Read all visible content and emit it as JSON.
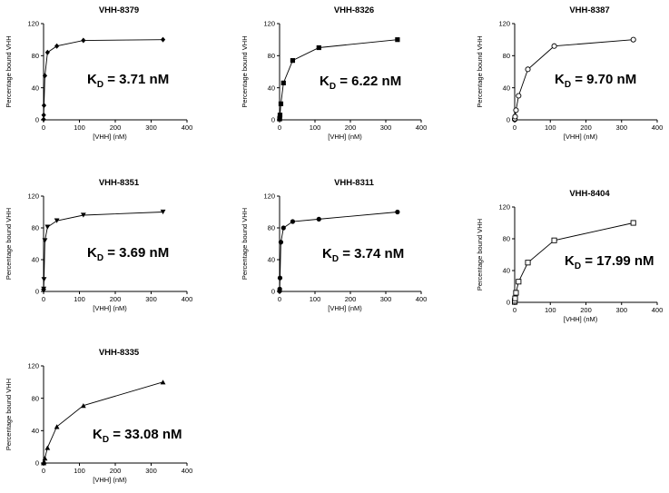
{
  "chart_data": [
    {
      "type": "scatter",
      "title": "VHH-8379",
      "xlabel": "[VHH] (nM)",
      "ylabel": "Percentage bound VHH",
      "xlim": [
        0,
        400
      ],
      "ylim": [
        0,
        120
      ],
      "xticks": [
        "0",
        "100",
        "200",
        "300",
        "400"
      ],
      "yticks": [
        "0",
        "40",
        "80",
        "120"
      ],
      "marker": "diamond",
      "x": [
        0.1,
        0.4,
        1.2,
        3.7,
        11,
        37,
        111,
        333
      ],
      "y": [
        0.5,
        6,
        18,
        55,
        84,
        92,
        99,
        100
      ],
      "kd_label": {
        "prefix": "K",
        "sub": "D",
        "value": " = 3.71 nM"
      }
    },
    {
      "type": "scatter",
      "title": "VHH-8326",
      "xlabel": "[VHH] (nM)",
      "ylabel": "Percentage bound VHH",
      "xlim": [
        0,
        400
      ],
      "ylim": [
        0,
        120
      ],
      "xticks": [
        "0",
        "100",
        "200",
        "300",
        "400"
      ],
      "yticks": [
        "0",
        "40",
        "80",
        "120"
      ],
      "marker": "square",
      "x": [
        0.1,
        0.4,
        1.2,
        3.7,
        11,
        37,
        111,
        333
      ],
      "y": [
        1,
        2,
        6,
        20,
        46,
        74,
        90,
        100
      ],
      "kd_label": {
        "prefix": "K",
        "sub": "D",
        "value": " = 6.22 nM"
      }
    },
    {
      "type": "scatter",
      "title": "VHH-8387",
      "xlabel": "[VHH] (nM)",
      "ylabel": "Percentage bound VHH",
      "xlim": [
        0,
        400
      ],
      "ylim": [
        0,
        120
      ],
      "xticks": [
        "0",
        "100",
        "200",
        "300",
        "400"
      ],
      "yticks": [
        "0",
        "40",
        "80",
        "120"
      ],
      "marker": "open-circle",
      "x": [
        0.1,
        0.4,
        1.2,
        3.7,
        11,
        37,
        111,
        333
      ],
      "y": [
        0.5,
        1.5,
        4,
        12,
        30,
        63,
        92,
        100
      ],
      "kd_label": {
        "prefix": "K",
        "sub": "D",
        "value": " = 9.70 nM"
      }
    },
    {
      "type": "scatter",
      "title": "VHH-8351",
      "xlabel": "[VHH] (nM)",
      "ylabel": "Percentage bound VHH",
      "xlim": [
        0,
        400
      ],
      "ylim": [
        0,
        120
      ],
      "xticks": [
        "0",
        "100",
        "200",
        "300",
        "400"
      ],
      "yticks": [
        "0",
        "40",
        "80",
        "120"
      ],
      "marker": "triangle-down",
      "x": [
        0.1,
        0.4,
        1.2,
        3.7,
        11,
        37,
        111,
        333
      ],
      "y": [
        0.5,
        3,
        15,
        64,
        81,
        89,
        96,
        100
      ],
      "kd_label": {
        "prefix": "K",
        "sub": "D",
        "value": " = 3.69 nM"
      }
    },
    {
      "type": "scatter",
      "title": "VHH-8311",
      "xlabel": "[VHH] (nM)",
      "ylabel": "Percentage bound VHH",
      "xlim": [
        0,
        400
      ],
      "ylim": [
        0,
        120
      ],
      "xticks": [
        "0",
        "100",
        "200",
        "300",
        "400"
      ],
      "yticks": [
        "0",
        "40",
        "80",
        "120"
      ],
      "marker": "circle",
      "x": [
        0.1,
        0.4,
        1.2,
        3.7,
        11,
        37,
        111,
        333
      ],
      "y": [
        0.5,
        3,
        17,
        62,
        80,
        88,
        91,
        100
      ],
      "kd_label": {
        "prefix": "K",
        "sub": "D",
        "value": " = 3.74 nM"
      }
    },
    {
      "type": "scatter",
      "title": "VHH-8404",
      "xlabel": "[VHH] (nM)",
      "ylabel": "Percentage bound VHH",
      "xlim": [
        0,
        400
      ],
      "ylim": [
        0,
        120
      ],
      "xticks": [
        "0",
        "100",
        "200",
        "300",
        "400"
      ],
      "yticks": [
        "0",
        "40",
        "80",
        "120"
      ],
      "marker": "open-square",
      "x": [
        0.1,
        0.4,
        1.2,
        3.7,
        11,
        37,
        111,
        333
      ],
      "y": [
        0.5,
        2,
        5,
        12,
        26,
        50,
        78,
        100
      ],
      "kd_label": {
        "prefix": "K",
        "sub": "D",
        "value": " = 17.99 nM"
      }
    },
    {
      "type": "scatter",
      "title": "VHH-8335",
      "xlabel": "[VHH] (nM)",
      "ylabel": "Percentage bound VHH",
      "xlim": [
        0,
        400
      ],
      "ylim": [
        0,
        120
      ],
      "xticks": [
        "0",
        "100",
        "200",
        "300",
        "400"
      ],
      "yticks": [
        "0",
        "40",
        "80",
        "120"
      ],
      "marker": "triangle-up",
      "x": [
        0.1,
        0.4,
        1.2,
        3.7,
        11,
        37,
        111,
        333
      ],
      "y": [
        0.2,
        0.5,
        2,
        6,
        19,
        45,
        71,
        100
      ],
      "kd_label": {
        "prefix": "K",
        "sub": "D",
        "value": " = 33.08 nM"
      }
    }
  ]
}
